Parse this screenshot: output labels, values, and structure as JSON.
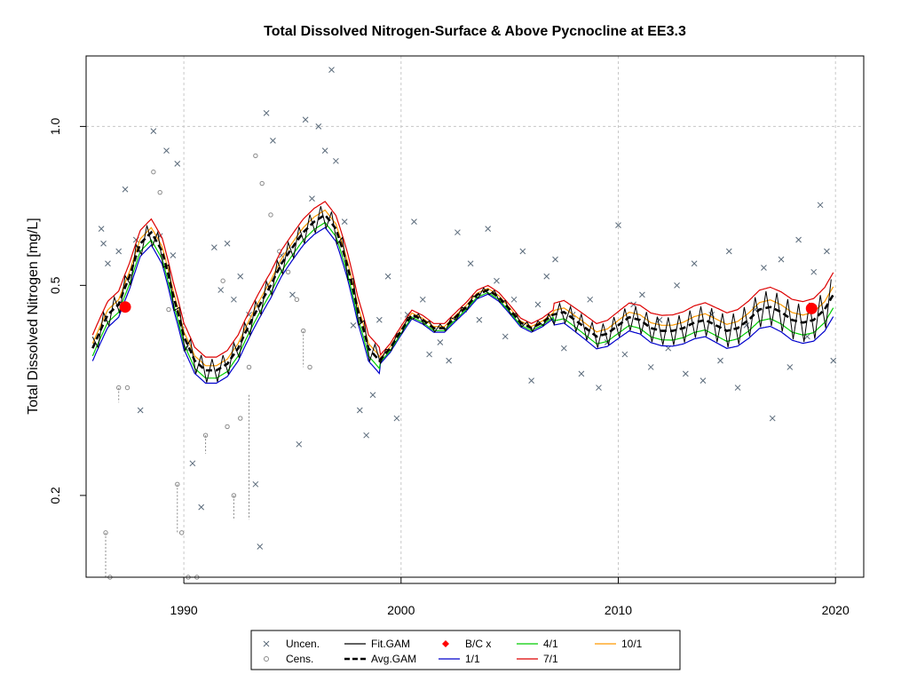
{
  "chart_data": {
    "type": "scatter",
    "title": "Total Dissolved Nitrogen-Surface & Above Pycnocline at EE3.3",
    "xlabel": "",
    "ylabel": "Total Dissolved Nitrogen [mg/L]",
    "x_range": [
      1985.5,
      2021.3
    ],
    "y_range": [
      0.14,
      1.36
    ],
    "y_scale": "log",
    "x_ticks": [
      1990,
      2000,
      2010,
      2020
    ],
    "x_tick_labels": [
      "1990",
      "2000",
      "2010",
      "2020"
    ],
    "y_ticks": [
      0.2,
      0.5,
      1.0
    ],
    "y_tick_labels": [
      "0.2",
      "0.5",
      "1.0"
    ],
    "grid": true,
    "legend_position": "bottom",
    "legend": [
      {
        "label": "Uncen.",
        "kind": "x-marker",
        "color": "#5a6a7a"
      },
      {
        "label": "Cens.",
        "kind": "circle-marker",
        "color": "#8a8a8a"
      },
      {
        "label": "Fit.GAM",
        "kind": "line",
        "color": "#000000"
      },
      {
        "label": "Avg.GAM",
        "kind": "dashed-line",
        "color": "#000000"
      },
      {
        "label": "B/C x",
        "kind": "dot",
        "color": "#ff0000"
      },
      {
        "label": "1/1",
        "kind": "line",
        "color": "#0000cc"
      },
      {
        "label": "4/1",
        "kind": "line",
        "color": "#00cc00"
      },
      {
        "label": "7/1",
        "kind": "line",
        "color": "#dd0000"
      },
      {
        "label": "10/1",
        "kind": "line",
        "color": "#ff9900"
      }
    ],
    "colors": {
      "uncensored": "#5a6a7a",
      "censored": "#8a8a8a",
      "fit_gam": "#000000",
      "avg_gam": "#000000",
      "bc": "#ff0000",
      "d1_1": "#0000cc",
      "d4_1": "#00cc00",
      "d7_1": "#dd0000",
      "d10_1": "#ff9900"
    },
    "avg_gam": [
      [
        1985.8,
        0.38
      ],
      [
        1986.5,
        0.44
      ],
      [
        1987.0,
        0.46
      ],
      [
        1987.5,
        0.52
      ],
      [
        1988.0,
        0.6
      ],
      [
        1988.5,
        0.63
      ],
      [
        1989.0,
        0.58
      ],
      [
        1989.5,
        0.48
      ],
      [
        1990.0,
        0.4
      ],
      [
        1990.5,
        0.36
      ],
      [
        1991.0,
        0.345
      ],
      [
        1991.5,
        0.345
      ],
      [
        1992.0,
        0.355
      ],
      [
        1992.5,
        0.38
      ],
      [
        1993.0,
        0.42
      ],
      [
        1993.5,
        0.46
      ],
      [
        1994.0,
        0.5
      ],
      [
        1994.5,
        0.55
      ],
      [
        1995.0,
        0.59
      ],
      [
        1995.5,
        0.63
      ],
      [
        1996.0,
        0.66
      ],
      [
        1996.5,
        0.68
      ],
      [
        1997.0,
        0.64
      ],
      [
        1997.5,
        0.55
      ],
      [
        1998.0,
        0.45
      ],
      [
        1998.5,
        0.38
      ],
      [
        1999.0,
        0.36
      ],
      [
        1999.5,
        0.38
      ],
      [
        2000.0,
        0.41
      ],
      [
        2000.5,
        0.44
      ],
      [
        2001.0,
        0.43
      ],
      [
        2001.5,
        0.415
      ],
      [
        2002.0,
        0.415
      ],
      [
        2002.5,
        0.435
      ],
      [
        2003.0,
        0.455
      ],
      [
        2003.5,
        0.48
      ],
      [
        2004.0,
        0.49
      ],
      [
        2004.5,
        0.475
      ],
      [
        2005.0,
        0.45
      ],
      [
        2005.5,
        0.425
      ],
      [
        2006.0,
        0.415
      ],
      [
        2006.5,
        0.425
      ],
      [
        2007.0,
        0.44
      ],
      [
        2007.5,
        0.445
      ],
      [
        2008.0,
        0.43
      ],
      [
        2008.5,
        0.415
      ],
      [
        2009.0,
        0.4
      ],
      [
        2009.5,
        0.405
      ],
      [
        2010.0,
        0.42
      ],
      [
        2010.5,
        0.435
      ],
      [
        2011.0,
        0.43
      ],
      [
        2011.5,
        0.415
      ],
      [
        2012.0,
        0.41
      ],
      [
        2012.5,
        0.41
      ],
      [
        2013.0,
        0.415
      ],
      [
        2013.5,
        0.425
      ],
      [
        2014.0,
        0.43
      ],
      [
        2014.5,
        0.42
      ],
      [
        2015.0,
        0.41
      ],
      [
        2015.5,
        0.415
      ],
      [
        2016.0,
        0.43
      ],
      [
        2016.5,
        0.45
      ],
      [
        2017.0,
        0.455
      ],
      [
        2017.5,
        0.445
      ],
      [
        2018.0,
        0.43
      ],
      [
        2018.5,
        0.425
      ],
      [
        2019.0,
        0.43
      ],
      [
        2019.5,
        0.45
      ],
      [
        2019.9,
        0.48
      ]
    ],
    "bc_points": [
      [
        1987.3,
        0.455
      ],
      [
        2018.9,
        0.452
      ]
    ],
    "uncensored_points": [
      [
        1986.2,
        0.64
      ],
      [
        1986.3,
        0.6
      ],
      [
        1986.5,
        0.55
      ],
      [
        1987.0,
        0.58
      ],
      [
        1987.3,
        0.76
      ],
      [
        1987.8,
        0.61
      ],
      [
        1988.0,
        0.29
      ],
      [
        1988.6,
        0.98
      ],
      [
        1988.9,
        0.62
      ],
      [
        1989.2,
        0.9
      ],
      [
        1989.5,
        0.57
      ],
      [
        1989.7,
        0.85
      ],
      [
        1989.9,
        0.42
      ],
      [
        1990.1,
        0.38
      ],
      [
        1990.4,
        0.23
      ],
      [
        1990.8,
        0.19
      ],
      [
        1991.4,
        0.59
      ],
      [
        1991.7,
        0.49
      ],
      [
        1992.0,
        0.6
      ],
      [
        1992.3,
        0.47
      ],
      [
        1992.6,
        0.52
      ],
      [
        1993.0,
        0.44
      ],
      [
        1993.3,
        0.21
      ],
      [
        1993.5,
        0.16
      ],
      [
        1993.8,
        1.06
      ],
      [
        1994.1,
        0.94
      ],
      [
        1994.5,
        0.57
      ],
      [
        1995.0,
        0.48
      ],
      [
        1995.3,
        0.25
      ],
      [
        1995.6,
        1.03
      ],
      [
        1995.9,
        0.73
      ],
      [
        1996.2,
        1.0
      ],
      [
        1996.5,
        0.9
      ],
      [
        1996.8,
        1.28
      ],
      [
        1997.0,
        0.86
      ],
      [
        1997.4,
        0.66
      ],
      [
        1997.8,
        0.42
      ],
      [
        1998.1,
        0.29
      ],
      [
        1998.4,
        0.26
      ],
      [
        1998.7,
        0.31
      ],
      [
        1999.0,
        0.43
      ],
      [
        1999.4,
        0.52
      ],
      [
        1999.8,
        0.28
      ],
      [
        2000.3,
        0.44
      ],
      [
        2000.6,
        0.66
      ],
      [
        2001.0,
        0.47
      ],
      [
        2001.3,
        0.37
      ],
      [
        2001.8,
        0.39
      ],
      [
        2002.2,
        0.36
      ],
      [
        2002.6,
        0.63
      ],
      [
        2002.9,
        0.45
      ],
      [
        2003.2,
        0.55
      ],
      [
        2003.6,
        0.43
      ],
      [
        2004.0,
        0.64
      ],
      [
        2004.4,
        0.51
      ],
      [
        2004.8,
        0.4
      ],
      [
        2005.2,
        0.47
      ],
      [
        2005.6,
        0.58
      ],
      [
        2006.0,
        0.33
      ],
      [
        2006.3,
        0.46
      ],
      [
        2006.7,
        0.52
      ],
      [
        2007.1,
        0.56
      ],
      [
        2007.5,
        0.38
      ],
      [
        2007.9,
        0.44
      ],
      [
        2008.3,
        0.34
      ],
      [
        2008.7,
        0.47
      ],
      [
        2009.1,
        0.32
      ],
      [
        2009.5,
        0.39
      ],
      [
        2010.0,
        0.65
      ],
      [
        2010.3,
        0.37
      ],
      [
        2010.7,
        0.46
      ],
      [
        2011.1,
        0.48
      ],
      [
        2011.5,
        0.35
      ],
      [
        2011.9,
        0.43
      ],
      [
        2012.3,
        0.38
      ],
      [
        2012.7,
        0.5
      ],
      [
        2013.1,
        0.34
      ],
      [
        2013.5,
        0.55
      ],
      [
        2013.9,
        0.33
      ],
      [
        2014.3,
        0.44
      ],
      [
        2014.7,
        0.36
      ],
      [
        2015.1,
        0.58
      ],
      [
        2015.5,
        0.32
      ],
      [
        2015.9,
        0.42
      ],
      [
        2016.3,
        0.45
      ],
      [
        2016.7,
        0.54
      ],
      [
        2017.1,
        0.28
      ],
      [
        2017.5,
        0.56
      ],
      [
        2017.9,
        0.35
      ],
      [
        2018.3,
        0.61
      ],
      [
        2018.7,
        0.4
      ],
      [
        2019.0,
        0.53
      ],
      [
        2019.3,
        0.71
      ],
      [
        2019.6,
        0.58
      ],
      [
        2019.9,
        0.36
      ]
    ],
    "censored_points": [
      [
        1986.4,
        0.17
      ],
      [
        1986.6,
        0.14
      ],
      [
        1987.0,
        0.32
      ],
      [
        1987.4,
        0.32
      ],
      [
        1988.6,
        0.82
      ],
      [
        1988.9,
        0.75
      ],
      [
        1989.3,
        0.45
      ],
      [
        1989.7,
        0.21
      ],
      [
        1989.9,
        0.17
      ],
      [
        1990.2,
        0.14
      ],
      [
        1990.6,
        0.14
      ],
      [
        1991.0,
        0.26
      ],
      [
        1991.8,
        0.51
      ],
      [
        1992.0,
        0.27
      ],
      [
        1992.3,
        0.2
      ],
      [
        1992.6,
        0.28
      ],
      [
        1993.0,
        0.35
      ],
      [
        1993.3,
        0.88
      ],
      [
        1993.6,
        0.78
      ],
      [
        1994.0,
        0.68
      ],
      [
        1994.4,
        0.58
      ],
      [
        1994.8,
        0.53
      ],
      [
        1995.2,
        0.47
      ],
      [
        1995.5,
        0.41
      ],
      [
        1995.8,
        0.35
      ]
    ],
    "censored_spans": [
      [
        1986.4,
        0.17,
        0.14
      ],
      [
        1987.0,
        0.32,
        0.3
      ],
      [
        1989.7,
        0.21,
        0.17
      ],
      [
        1991.0,
        0.26,
        0.24
      ],
      [
        1992.3,
        0.2,
        0.18
      ],
      [
        1993.0,
        0.31,
        0.18
      ],
      [
        1995.5,
        0.41,
        0.35
      ]
    ]
  }
}
